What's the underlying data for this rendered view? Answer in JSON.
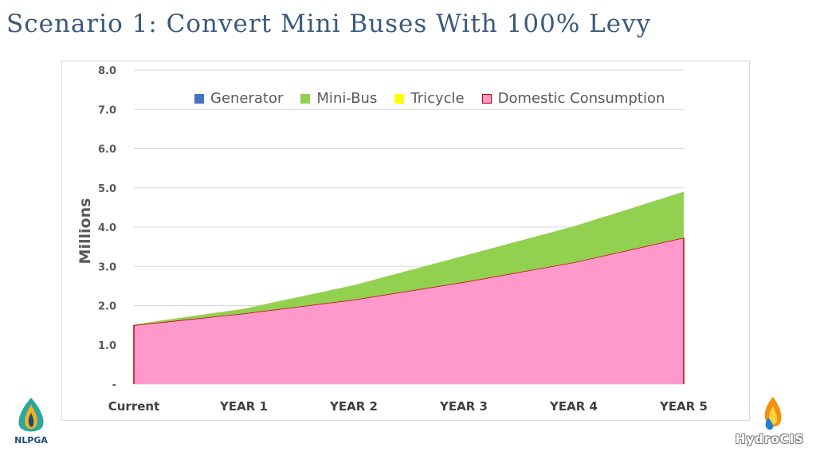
{
  "slide": {
    "title": "Scenario 1: Convert Mini Buses With 100% Levy"
  },
  "logos": {
    "left_text": "NLPGA",
    "right_text": "HydroCIS"
  },
  "colors": {
    "generator": "#4472c4",
    "mini_bus": "#92d050",
    "tricycle": "#ffff00",
    "domestic_fill": "#ff99cc",
    "domestic_line": "#c00000",
    "title": "#3a5a7c"
  },
  "chart_data": {
    "type": "area",
    "stacked": true,
    "title": "",
    "xlabel": "",
    "ylabel": "Millions",
    "categories": [
      "Current",
      "YEAR 1",
      "YEAR 2",
      "YEAR 3",
      "YEAR 4",
      "YEAR 5"
    ],
    "ylim": [
      0,
      8
    ],
    "y_ticks": [
      0,
      1,
      2,
      3,
      4,
      5,
      6,
      7,
      8
    ],
    "y_tick_labels": [
      "-",
      "1.0",
      "2.0",
      "3.0",
      "4.0",
      "5.0",
      "6.0",
      "7.0",
      "8.0"
    ],
    "grid": true,
    "legend_position": "top",
    "series": [
      {
        "name": "Generator",
        "color_key": "generator",
        "values": [
          0,
          0,
          0,
          0,
          0,
          0
        ]
      },
      {
        "name": "Mini-Bus",
        "color_key": "mini_bus",
        "values": [
          0.02,
          0.12,
          0.37,
          0.67,
          0.92,
          1.17
        ]
      },
      {
        "name": "Tricycle",
        "color_key": "tricycle",
        "values": [
          0,
          0,
          0,
          0,
          0,
          0
        ]
      },
      {
        "name": "Domestic Consumption",
        "color_key": "domestic_fill",
        "values": [
          1.5,
          1.8,
          2.15,
          2.6,
          3.1,
          3.73
        ]
      }
    ]
  }
}
